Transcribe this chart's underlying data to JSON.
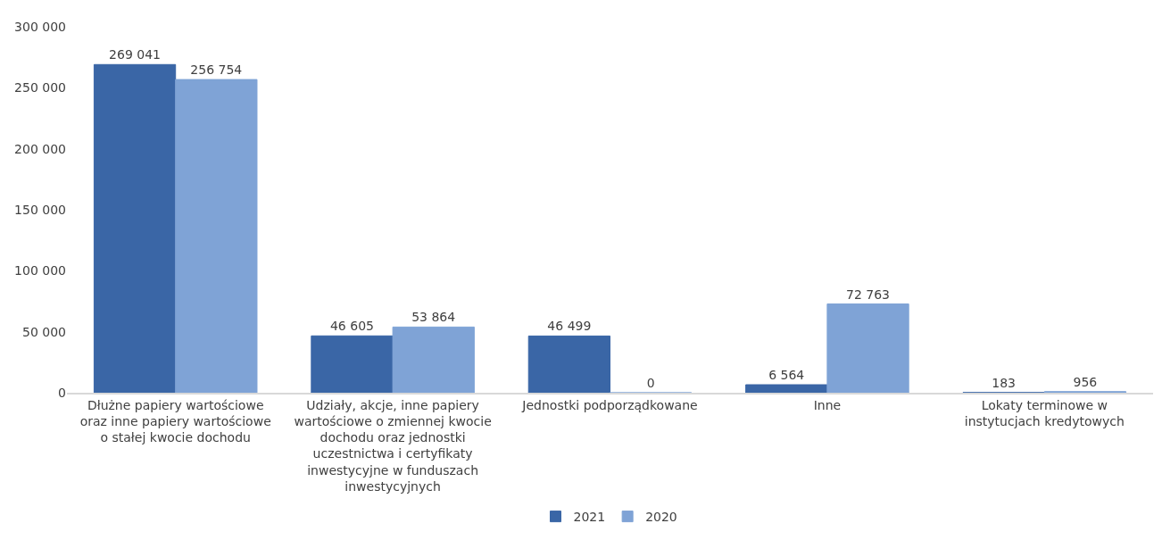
{
  "chart_data": {
    "type": "bar",
    "categories": [
      "Dłużne papiery wartościowe oraz inne papiery wartościowe o stałej kwocie dochodu",
      "Udziały, akcje, inne papiery wartościowe o zmiennej kwocie dochodu oraz jednostki uczestnictwa i certyfikaty inwestycyjne w funduszach inwestycyjnych",
      "Jednostki podporządkowane",
      "Inne",
      "Lokaty terminowe w instytucjach kredytowych"
    ],
    "series": [
      {
        "name": "2021",
        "color": "#3a66a6",
        "values": [
          269041,
          46605,
          46499,
          6564,
          183
        ],
        "value_labels": [
          "269 041",
          "46 605",
          "46 499",
          "6 564",
          "183"
        ]
      },
      {
        "name": "2020",
        "color": "#7fa3d6",
        "values": [
          256754,
          53864,
          0,
          72763,
          956
        ],
        "value_labels": [
          "256 754",
          "53 864",
          "0",
          "72 763",
          "956"
        ]
      }
    ],
    "ylim": [
      0,
      300000
    ],
    "yticks": [
      {
        "value": 0,
        "label": "0"
      },
      {
        "value": 50000,
        "label": "50 000"
      },
      {
        "value": 100000,
        "label": "100 000"
      },
      {
        "value": 150000,
        "label": "150 000"
      },
      {
        "value": 200000,
        "label": "200 000"
      },
      {
        "value": 250000,
        "label": "250 000"
      },
      {
        "value": 300000,
        "label": "300 000"
      }
    ],
    "legend": "bottom"
  }
}
